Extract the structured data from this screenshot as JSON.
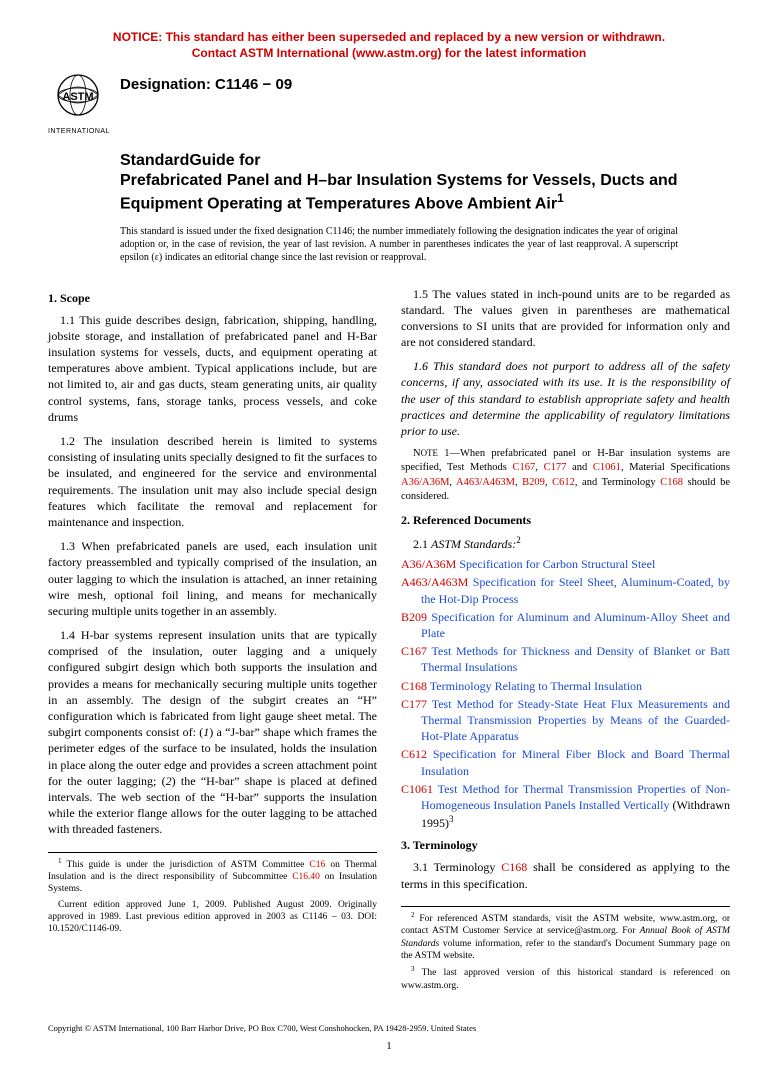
{
  "notice": {
    "line1": "NOTICE: This standard has either been superseded and replaced by a new version or withdrawn.",
    "line2": "Contact ASTM International (www.astm.org) for the latest information"
  },
  "logo": {
    "text_top": "ASTM",
    "text_bottom": "INTERNATIONAL"
  },
  "designation": "Designation: C1146 − 09",
  "title": {
    "lead": "StandardGuide for",
    "main": "Prefabricated Panel and H–bar Insulation Systems for Vessels, Ducts and Equipment Operating at Temperatures Above Ambient Air",
    "sup": "1"
  },
  "issuance": "This standard is issued under the fixed designation C1146; the number immediately following the designation indicates the year of original adoption or, in the case of revision, the year of last revision. A number in parentheses indicates the year of last reapproval. A superscript epsilon (ε) indicates an editorial change since the last revision or reapproval.",
  "s1_head": "1. Scope",
  "s1_1": "1.1 This guide describes design, fabrication, shipping, handling, jobsite storage, and installation of prefabricated panel and H-Bar insulation systems for vessels, ducts, and equipment operating at temperatures above ambient. Typical applications include, but are not limited to, air and gas ducts, steam generating units, air quality control systems, fans, storage tanks, process vessels, and coke drums",
  "s1_2": "1.2 The insulation described herein is limited to systems consisting of insulating units specially designed to fit the surfaces to be insulated, and engineered for the service and environmental requirements. The insulation unit may also include special design features which facilitate the removal and replacement for maintenance and inspection.",
  "s1_3": "1.3 When prefabricated panels are used, each insulation unit factory preassembled and typically comprised of the insulation, an outer lagging to which the insulation is attached, an inner retaining wire mesh, optional foil lining, and means for mechanically securing multiple units together in an assembly.",
  "s1_4": "1.4 H-bar systems represent insulation units that are typically comprised of the insulation, outer lagging and a uniquely configured subgirt design which both supports the insulation and provides a means for mechanically securing multiple units together in an assembly. The design of the subgirt creates an “H” configuration which is fabricated from light gauge sheet metal. The subgirt components consist of: (1) a “J-bar” shape which frames the perimeter edges of the surface to be insulated, holds the insulation in place along the outer edge and provides a screen attachment point for the outer lagging; (2) the “H-bar” shape is placed at defined intervals. The web section of the “H-bar” supports the insulation while the exterior flange allows for the outer lagging to be attached with threaded fasteners.",
  "s1_5": "1.5 The values stated in inch-pound units are to be regarded as standard. The values given in parentheses are mathematical conversions to SI units that are provided for information only and are not considered standard.",
  "s1_6": "1.6 This standard does not purport to address all of the safety concerns, if any, associated with its use. It is the responsibility of the user of this standard to establish appropriate safety and health practices and determine the applicability of regulatory limitations prior to use.",
  "note1_lead": "Note 1—When prefabricated panel or H-Bar insulation systems are specified, Test Methods ",
  "note1_mid1": ", ",
  "note1_mid2": " and ",
  "note1_mid3": ", Material Specifications ",
  "note1_mid4": ", ",
  "note1_mid5": ", ",
  "note1_mid6": ", ",
  "note1_mid7": ", and Terminology ",
  "note1_end": " should be considered.",
  "s2_head": "2. Referenced Documents",
  "s2_1_lead": "2.1 ",
  "s2_1_it": "ASTM Standards:",
  "s2_1_sup": "2",
  "refs": [
    {
      "code": "A36/A36M",
      "text": " Specification for Carbon Structural Steel"
    },
    {
      "code": "A463/A463M",
      "text": " Specification for Steel Sheet, Aluminum-Coated, by the Hot-Dip Process"
    },
    {
      "code": "B209",
      "text": " Specification for Aluminum and Aluminum-Alloy Sheet and Plate"
    },
    {
      "code": "C167",
      "text": " Test Methods for Thickness and Density of Blanket or Batt Thermal Insulations"
    },
    {
      "code": "C168",
      "text": " Terminology Relating to Thermal Insulation"
    },
    {
      "code": "C177",
      "text": " Test Method for Steady-State Heat Flux Measurements and Thermal Transmission Properties by Means of the Guarded-Hot-Plate Apparatus"
    },
    {
      "code": "C612",
      "text": " Specification for Mineral Fiber Block and Board Thermal Insulation"
    },
    {
      "code": "C1061",
      "text": " Test Method for Thermal Transmission Properties of Non-Homogeneous Insulation Panels Installed Vertically",
      "suffix": " (Withdrawn 1995)",
      "sup": "3"
    }
  ],
  "note_codes": {
    "c167": "C167",
    "c177": "C177",
    "c1061": "C1061",
    "a36": "A36/A36M",
    "a463": "A463/A463M",
    "b209": "B209",
    "c612": "C612",
    "c168": "C168"
  },
  "s3_head": "3. Terminology",
  "s3_1_a": "3.1 Terminology ",
  "s3_1_code": "C168",
  "s3_1_b": " shall be considered as applying to the terms in this specification.",
  "fn1_a": "This guide is under the jurisdiction of ASTM Committee ",
  "fn1_code1": "C16",
  "fn1_b": " on Thermal Insulation and is the direct responsibility of Subcommittee ",
  "fn1_code2": "C16.40",
  "fn1_c": " on Insulation Systems.",
  "fn1_d": "Current edition approved June 1, 2009. Published August 2009. Originally approved in 1989. Last previous edition approved in 2003 as C1146 – 03. DOI: 10.1520/C1146-09.",
  "fn2_a": "For referenced ASTM standards, visit the ASTM website, www.astm.org, or contact ASTM Customer Service at service@astm.org. For ",
  "fn2_it": "Annual Book of ASTM Standards",
  "fn2_b": " volume information, refer to the standard's Document Summary page on the ASTM website.",
  "fn3": "The last approved version of this historical standard is referenced on www.astm.org.",
  "copyright": "Copyright © ASTM International, 100 Barr Harbor Drive, PO Box C700, West Conshohocken, PA 19428-2959. United States",
  "pagenum": "1",
  "colors": {
    "notice": "#d00000",
    "link": "#1a4bd1",
    "code": "#d00000"
  }
}
